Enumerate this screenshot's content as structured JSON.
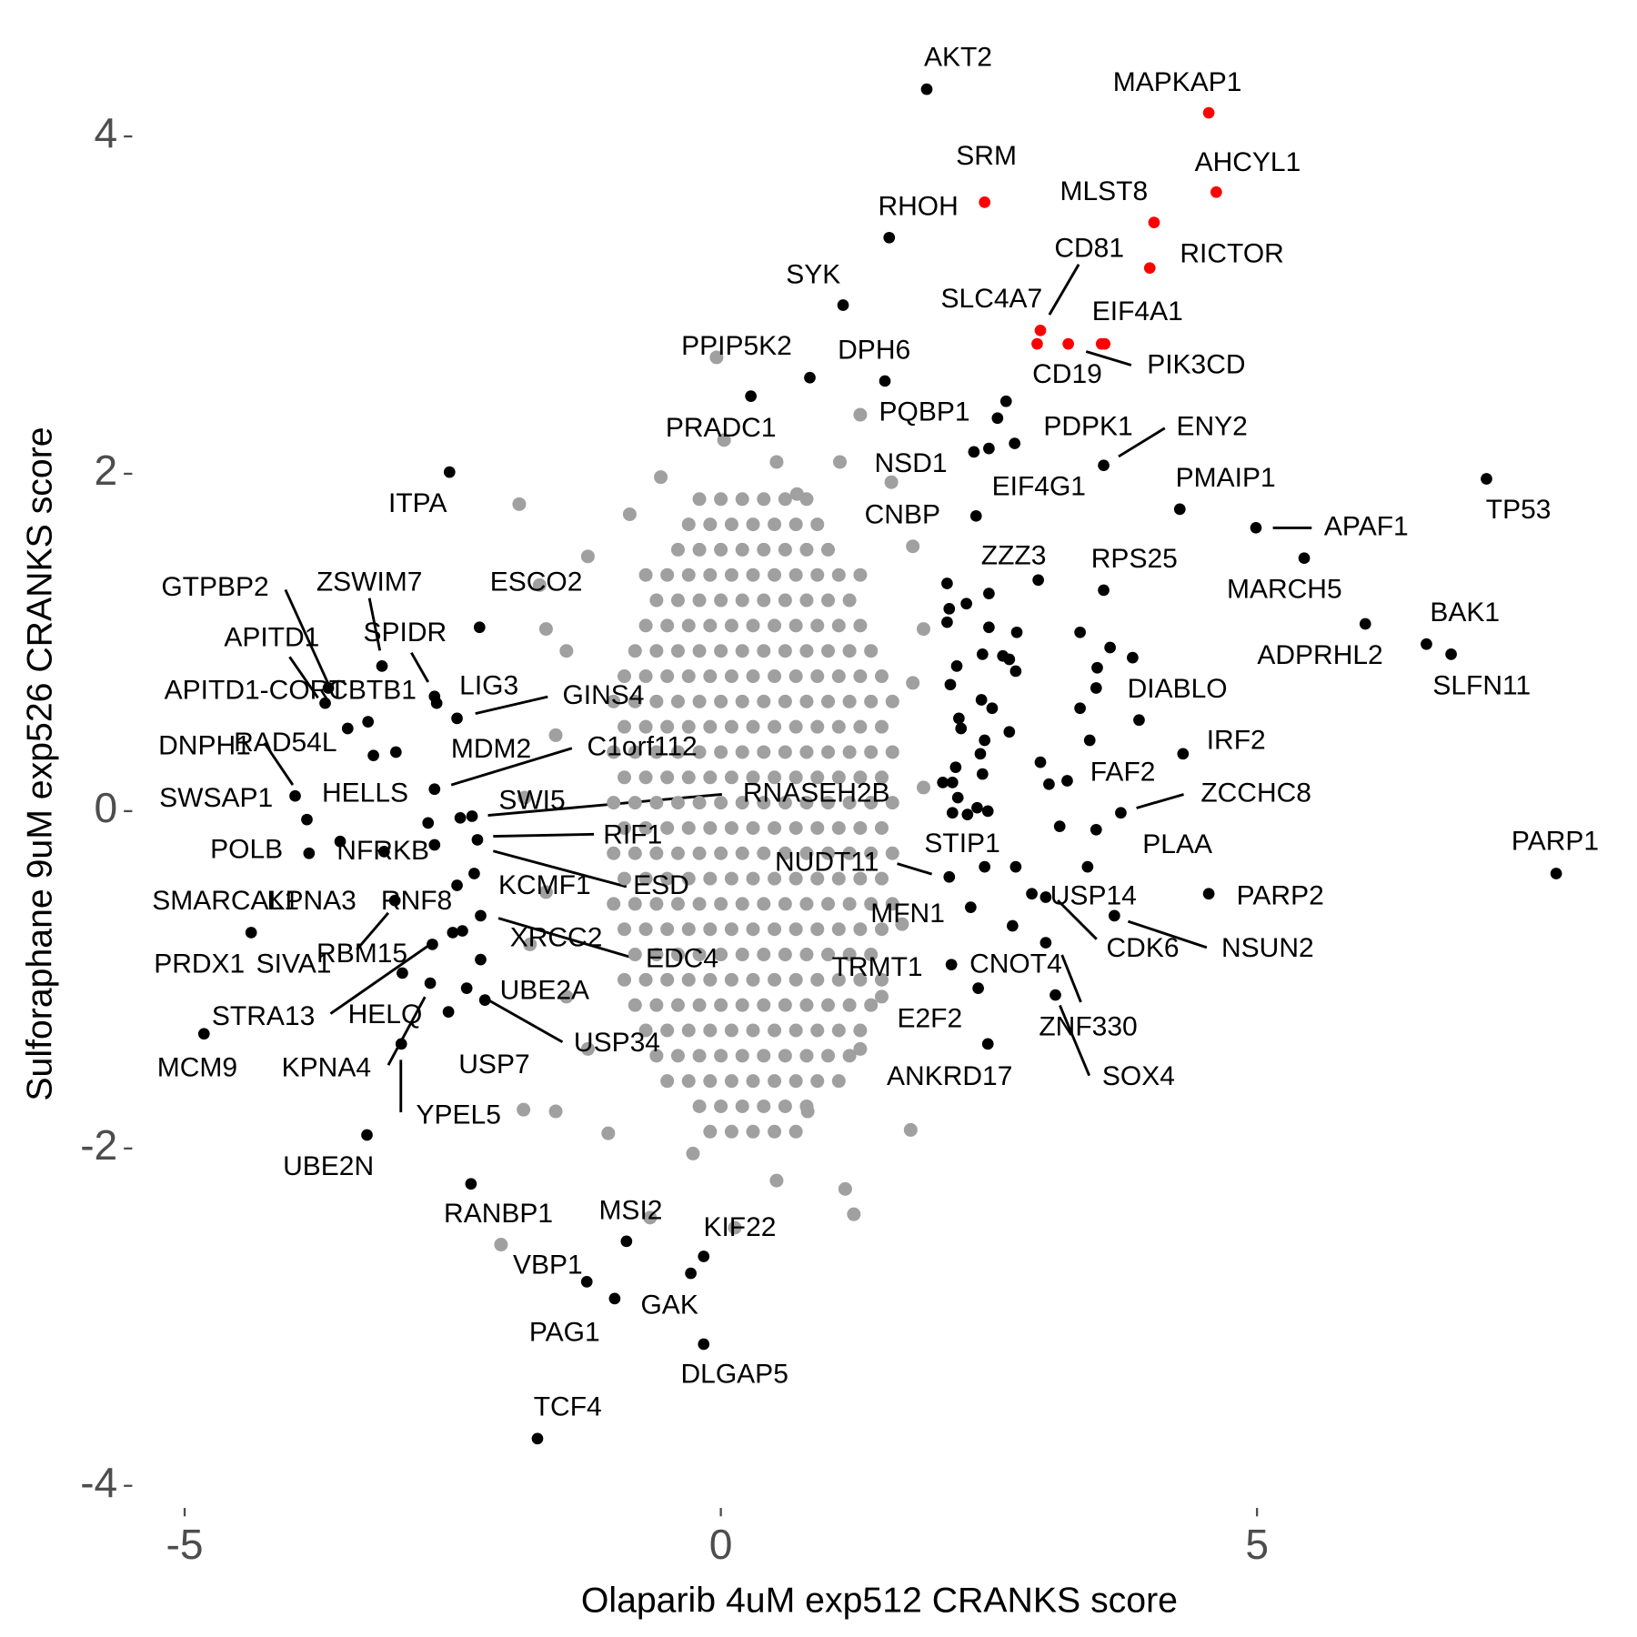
{
  "chart_data": {
    "type": "scatter",
    "x_label": "Olaparib 4uM exp512 CRANKS score",
    "y_label": "Sulforaphane 9uM exp526 CRANKS score",
    "xlim": [
      -5.45,
      8.25
    ],
    "ylim": [
      -4.1,
      4.56
    ],
    "xticks": [
      -5,
      0,
      5
    ],
    "yticks": [
      -4,
      -2,
      0,
      2,
      4
    ],
    "grid": false,
    "series": [
      {
        "color": "#a0a0a0",
        "x": [
          -0.2,
          0,
          0.2,
          0.4,
          0.6,
          0.8,
          -0.3,
          -0.1,
          0.1,
          0.3,
          0.5,
          0.7,
          0.9,
          -0.4,
          -0.2,
          0,
          0.2,
          0.4,
          0.6,
          0.8,
          1,
          -0.7,
          -0.5,
          -0.3,
          -0.1,
          0.1,
          0.3,
          0.5,
          0.7,
          0.9,
          1.1,
          1.3,
          -0.6,
          -0.4,
          -0.2,
          0,
          0.2,
          0.4,
          0.6,
          0.8,
          1,
          1.2,
          -0.7,
          -0.5,
          -0.3,
          -0.1,
          0.1,
          0.3,
          0.5,
          0.7,
          0.9,
          1.1,
          1.3,
          -0.8,
          -0.6,
          -0.4,
          -0.2,
          0,
          0.2,
          0.4,
          0.6,
          0.8,
          1,
          1.2,
          1.4,
          -0.9,
          -0.7,
          -0.5,
          -0.3,
          -0.1,
          0.1,
          0.3,
          0.5,
          0.7,
          0.9,
          1.1,
          1.3,
          1.5,
          -1,
          -0.8,
          -0.6,
          -0.4,
          -0.2,
          0,
          0.2,
          0.4,
          0.6,
          0.8,
          1,
          1.2,
          1.4,
          1.6,
          -0.9,
          -0.7,
          -0.5,
          -0.3,
          -0.1,
          0.1,
          0.3,
          0.5,
          0.7,
          0.9,
          1.1,
          1.3,
          1.5,
          -1,
          -0.8,
          -0.6,
          -0.4,
          -0.2,
          0,
          0.2,
          0.4,
          0.6,
          0.8,
          1,
          1.2,
          1.4,
          1.6,
          -0.9,
          -0.7,
          -0.5,
          -0.3,
          -0.1,
          0.1,
          0.3,
          0.5,
          0.7,
          0.9,
          1.1,
          1.3,
          1.5,
          -1,
          -0.8,
          -0.6,
          -0.4,
          -0.2,
          0,
          0.2,
          0.4,
          0.6,
          0.8,
          1,
          1.2,
          1.4,
          1.6,
          -0.9,
          -0.7,
          -0.5,
          -0.3,
          -0.1,
          0.1,
          0.3,
          0.5,
          0.7,
          0.9,
          1.1,
          1.3,
          1.5,
          -1,
          -0.8,
          -0.6,
          -0.4,
          -0.2,
          0,
          0.2,
          0.4,
          0.6,
          0.8,
          1,
          1.2,
          1.4,
          1.6,
          -0.9,
          -0.7,
          -0.5,
          -0.3,
          -0.1,
          0.1,
          0.3,
          0.5,
          0.7,
          0.9,
          1.1,
          1.3,
          1.5,
          -1,
          -0.8,
          -0.6,
          -0.4,
          -0.2,
          0,
          0.2,
          0.4,
          0.6,
          0.8,
          1,
          1.2,
          1.4,
          1.6,
          -0.9,
          -0.7,
          -0.5,
          -0.3,
          -0.1,
          0.1,
          0.3,
          0.5,
          0.7,
          0.9,
          1.1,
          1.3,
          1.5,
          -0.8,
          -0.6,
          -0.4,
          -0.2,
          0,
          0.2,
          0.4,
          0.6,
          0.8,
          1,
          1.2,
          1.4,
          -0.9,
          -0.7,
          -0.5,
          -0.3,
          -0.1,
          0.1,
          0.3,
          0.5,
          0.7,
          0.9,
          1.1,
          1.3,
          1.5,
          -0.8,
          -0.6,
          -0.4,
          -0.2,
          0,
          0.2,
          0.4,
          0.6,
          0.8,
          1,
          1.2,
          1.4,
          -0.7,
          -0.5,
          -0.3,
          -0.1,
          0.1,
          0.3,
          0.5,
          0.7,
          0.9,
          1.1,
          1.3,
          -0.6,
          -0.4,
          -0.2,
          0,
          0.2,
          0.4,
          0.6,
          0.8,
          1,
          1.2,
          -0.5,
          -0.3,
          -0.1,
          0.1,
          0.3,
          0.5,
          0.7,
          0.9,
          1.1,
          -0.2,
          0,
          0.2,
          0.4,
          0.6,
          0.8,
          -0.1,
          0.1,
          0.3,
          0.5,
          0.7,
          -0.04,
          -1.88,
          -1.69,
          1.77,
          1.24,
          1.16,
          -2.05,
          -1.54,
          -1.84,
          -0.66,
          0.13,
          0.52,
          1.3,
          1.69,
          1.79,
          1.89,
          1.59,
          1.3,
          0.52,
          1.11,
          -0.56,
          -0.85,
          -1.24,
          -1.44,
          -1.54,
          -1.83,
          -1.63,
          -1.44,
          -1.24,
          -1.05,
          -0.26,
          0.81,
          1.5,
          1.89,
          1.79,
          0.03,
          0.71,
          -1.63,
          -1.78
        ],
        "y": [
          1.85,
          1.85,
          1.85,
          1.85,
          1.85,
          1.85,
          1.7,
          1.7,
          1.7,
          1.7,
          1.7,
          1.7,
          1.7,
          1.55,
          1.55,
          1.55,
          1.55,
          1.55,
          1.55,
          1.55,
          1.55,
          1.4,
          1.4,
          1.4,
          1.4,
          1.4,
          1.4,
          1.4,
          1.4,
          1.4,
          1.4,
          1.4,
          1.25,
          1.25,
          1.25,
          1.25,
          1.25,
          1.25,
          1.25,
          1.25,
          1.25,
          1.25,
          1.1,
          1.1,
          1.1,
          1.1,
          1.1,
          1.1,
          1.1,
          1.1,
          1.1,
          1.1,
          1.1,
          0.95,
          0.95,
          0.95,
          0.95,
          0.95,
          0.95,
          0.95,
          0.95,
          0.95,
          0.95,
          0.95,
          0.95,
          0.8,
          0.8,
          0.8,
          0.8,
          0.8,
          0.8,
          0.8,
          0.8,
          0.8,
          0.8,
          0.8,
          0.8,
          0.8,
          0.65,
          0.65,
          0.65,
          0.65,
          0.65,
          0.65,
          0.65,
          0.65,
          0.65,
          0.65,
          0.65,
          0.65,
          0.65,
          0.65,
          0.5,
          0.5,
          0.5,
          0.5,
          0.5,
          0.5,
          0.5,
          0.5,
          0.5,
          0.5,
          0.5,
          0.5,
          0.5,
          0.35,
          0.35,
          0.35,
          0.35,
          0.35,
          0.35,
          0.35,
          0.35,
          0.35,
          0.35,
          0.35,
          0.35,
          0.35,
          0.35,
          0.2,
          0.2,
          0.2,
          0.2,
          0.2,
          0.2,
          0.2,
          0.2,
          0.2,
          0.2,
          0.2,
          0.2,
          0.2,
          0.05,
          0.05,
          0.05,
          0.05,
          0.05,
          0.05,
          0.05,
          0.05,
          0.05,
          0.05,
          0.05,
          0.05,
          0.05,
          0.05,
          -0.1,
          -0.1,
          -0.1,
          -0.1,
          -0.1,
          -0.1,
          -0.1,
          -0.1,
          -0.1,
          -0.1,
          -0.1,
          -0.1,
          -0.1,
          -0.25,
          -0.25,
          -0.25,
          -0.25,
          -0.25,
          -0.25,
          -0.25,
          -0.25,
          -0.25,
          -0.25,
          -0.25,
          -0.25,
          -0.25,
          -0.25,
          -0.4,
          -0.4,
          -0.4,
          -0.4,
          -0.4,
          -0.4,
          -0.4,
          -0.4,
          -0.4,
          -0.4,
          -0.4,
          -0.4,
          -0.4,
          -0.55,
          -0.55,
          -0.55,
          -0.55,
          -0.55,
          -0.55,
          -0.55,
          -0.55,
          -0.55,
          -0.55,
          -0.55,
          -0.55,
          -0.55,
          -0.55,
          -0.7,
          -0.7,
          -0.7,
          -0.7,
          -0.7,
          -0.7,
          -0.7,
          -0.7,
          -0.7,
          -0.7,
          -0.7,
          -0.7,
          -0.7,
          -0.85,
          -0.85,
          -0.85,
          -0.85,
          -0.85,
          -0.85,
          -0.85,
          -0.85,
          -0.85,
          -0.85,
          -0.85,
          -0.85,
          -1,
          -1,
          -1,
          -1,
          -1,
          -1,
          -1,
          -1,
          -1,
          -1,
          -1,
          -1,
          -1,
          -1.15,
          -1.15,
          -1.15,
          -1.15,
          -1.15,
          -1.15,
          -1.15,
          -1.15,
          -1.15,
          -1.15,
          -1.15,
          -1.15,
          -1.3,
          -1.3,
          -1.3,
          -1.3,
          -1.3,
          -1.3,
          -1.3,
          -1.3,
          -1.3,
          -1.3,
          -1.3,
          -1.45,
          -1.45,
          -1.45,
          -1.45,
          -1.45,
          -1.45,
          -1.45,
          -1.45,
          -1.45,
          -1.45,
          -1.6,
          -1.6,
          -1.6,
          -1.6,
          -1.6,
          -1.6,
          -1.6,
          -1.6,
          -1.6,
          -1.75,
          -1.75,
          -1.75,
          -1.75,
          -1.75,
          -1.75,
          -1.9,
          -1.9,
          -1.9,
          -1.9,
          -1.9,
          2.69,
          1.82,
          1.34,
          -1.89,
          -2.39,
          -2.24,
          -2.57,
          -1.78,
          -1.77,
          -2.41,
          -2.47,
          -2.19,
          -1.41,
          -0.67,
          0.76,
          1.08,
          1.95,
          2.35,
          2.07,
          2.07,
          1.98,
          1.76,
          1.51,
          0.95,
          0.45,
          0.08,
          -0.48,
          -1.1,
          -1.41,
          -1.91,
          -2.03,
          -1.78,
          -1.1,
          0.14,
          1.57,
          2.2,
          1.88,
          1.08,
          -0.79
        ]
      },
      {
        "color": "#000000",
        "x": [
          2.11,
          2.13,
          2.11,
          2.29,
          2.5,
          2.5,
          2.76,
          2.63,
          2.69,
          2.75,
          2.44,
          2.2,
          2.14,
          2.43,
          2.22,
          2.24,
          2.53,
          2.69,
          2.46,
          2.42,
          2.19,
          2.44,
          2.07,
          2.16,
          2.21,
          2.39,
          2.49,
          2.16,
          2.3,
          3.35,
          3.63,
          3.84,
          3.51,
          3.5,
          3.35,
          3.44,
          2.98,
          3.06,
          3.16,
          3.42,
          2.75,
          2.5
        ],
        "y": [
          1.35,
          1.2,
          1.12,
          1.23,
          1.29,
          1.09,
          1.06,
          0.92,
          0.9,
          0.83,
          0.93,
          0.86,
          0.75,
          0.66,
          0.55,
          0.49,
          0.61,
          0.47,
          0.42,
          0.34,
          0.26,
          0.22,
          0.17,
          0.17,
          0.08,
          0.02,
          0,
          -0.01,
          -0.02,
          1.06,
          0.97,
          0.91,
          0.85,
          0.73,
          0.61,
          0.42,
          0.29,
          0.16,
          -0.09,
          -0.33,
          -0.33,
          2.15
        ]
      },
      {
        "color": "#000000",
        "labels": [
          "AKT2",
          "RHOH",
          "SYK",
          "PPIP5K2",
          "DPH6",
          "PRADC1",
          "ITPA",
          "PQBP1",
          "NSD1",
          "PDPK1",
          "ENY2",
          "EIF4G1",
          "PMAIP1",
          "TP53",
          "APAF1",
          "CNBP",
          "MARCH5",
          "ZZZ3",
          "RPS25",
          "ADPRHL2",
          "BAK1",
          "SLFN11",
          "DIABLO",
          "IRF2",
          "FAF2",
          "ZCCHC8",
          "PLAA",
          "PARP1",
          "PARP2",
          "NSUN2",
          "USP14",
          "CDK6",
          "STIP1",
          "NUDT11",
          "MFN1",
          "TRMT1",
          "CNOT4",
          "E2F2",
          "ZNF330",
          "SOX4",
          "ANKRD17",
          "GTPBP2",
          "ZSWIM7",
          "APITD1",
          "SPIDR",
          "APITD1-CORT",
          "CBTB1",
          "LIG3",
          "GINS4",
          "DNPH1",
          "RAD54L",
          "MDM2",
          "C1orf112",
          "SWSAP1",
          "HELLS",
          "SWI5",
          "RNASEH2B",
          "RIF1",
          "POLB",
          "NFRKB",
          "ESD",
          "KCMF1",
          "SMARCAL1",
          "PRDX1",
          "KPNA3",
          "RNF8",
          "RBM15",
          "SIVA1",
          "XRCC2",
          "EDC4",
          "UBE2A",
          "STRA13",
          "HELQ",
          "USP34",
          "USP7",
          "KPNA4",
          "MCM9",
          "YPEL5",
          "UBE2N",
          "RANBP1",
          "MSI2",
          "KIF22",
          "VBP1",
          "GAK",
          "PAG1",
          "DLGAP5",
          "TCF4",
          "ESCO2"
        ],
        "x": [
          1.92,
          1.57,
          1.14,
          0.83,
          1.53,
          0.28,
          -2.53,
          2.66,
          2.58,
          2.74,
          3.57,
          2.36,
          4.28,
          7.14,
          4.99,
          2.38,
          5.44,
          2.96,
          3.57,
          6.01,
          6.58,
          6.81,
          3.9,
          4.31,
          3.23,
          3.73,
          3.5,
          7.79,
          4.55,
          3.67,
          2.9,
          3.03,
          2.46,
          2.13,
          2.33,
          2.15,
          2.4,
          2.72,
          3.12,
          3.03,
          2.49,
          -3.66,
          -3.16,
          -3.69,
          -2.67,
          -3.29,
          -3.48,
          -2.46,
          -2.65,
          -3.97,
          -3.03,
          -3.24,
          -2.67,
          -3.86,
          -2.73,
          -2.32,
          -2.43,
          -2.27,
          -3.84,
          -3.55,
          -2.67,
          -2.3,
          -3.14,
          -4.38,
          -2.46,
          -3.04,
          -2.5,
          -2.41,
          -2.24,
          -2.24,
          -2.37,
          -2.69,
          -2.97,
          -2.2,
          -2.54,
          -2.71,
          -4.82,
          -2.98,
          -3.3,
          -2.33,
          -0.88,
          -0.16,
          -1.25,
          -0.28,
          -0.99,
          -0.16,
          -1.71,
          -2.25
        ],
        "y": [
          4.28,
          3.4,
          3,
          2.57,
          2.55,
          2.46,
          2.01,
          2.43,
          2.33,
          2.18,
          2.05,
          2.13,
          1.79,
          1.97,
          1.68,
          1.75,
          1.5,
          1.37,
          1.31,
          1.11,
          0.99,
          0.93,
          0.54,
          0.34,
          0.18,
          -0.01,
          -0.11,
          -0.37,
          -0.49,
          -0.62,
          -0.49,
          -0.51,
          -0.33,
          -0.39,
          -0.57,
          -0.91,
          -1.05,
          -0.68,
          -1.09,
          -0.78,
          -1.38,
          0.73,
          0.86,
          0.64,
          0.68,
          0.53,
          0.49,
          0.55,
          0.64,
          0.09,
          0.35,
          0.33,
          0.13,
          -0.05,
          -0.07,
          -0.03,
          -0.04,
          -0.17,
          -0.25,
          -0.18,
          -0.2,
          -0.37,
          -0.24,
          -0.72,
          -0.44,
          -0.53,
          -0.72,
          -0.71,
          -0.62,
          -0.88,
          -1.05,
          -0.79,
          -0.96,
          -1.12,
          -1.19,
          -1.02,
          -1.32,
          -1.38,
          -1.92,
          -2.21,
          -2.55,
          -2.64,
          -2.79,
          -2.74,
          -2.89,
          -3.16,
          -3.72,
          1.09
        ]
      },
      {
        "color": "#ff0000",
        "labels": [
          "MAPKAP1",
          "AHCYL1",
          "SRM",
          "MLST8",
          "RICTOR",
          "CD81",
          "SLC4A7",
          "CD19",
          "EIF4A1",
          "PIK3CD"
        ],
        "x": [
          4.55,
          4.62,
          2.46,
          4.04,
          4,
          2.98,
          2.95,
          3.24,
          3.58,
          3.55
        ],
        "y": [
          4.14,
          3.67,
          3.61,
          3.49,
          3.22,
          2.85,
          2.77,
          2.77,
          2.77,
          2.77
        ]
      }
    ]
  }
}
